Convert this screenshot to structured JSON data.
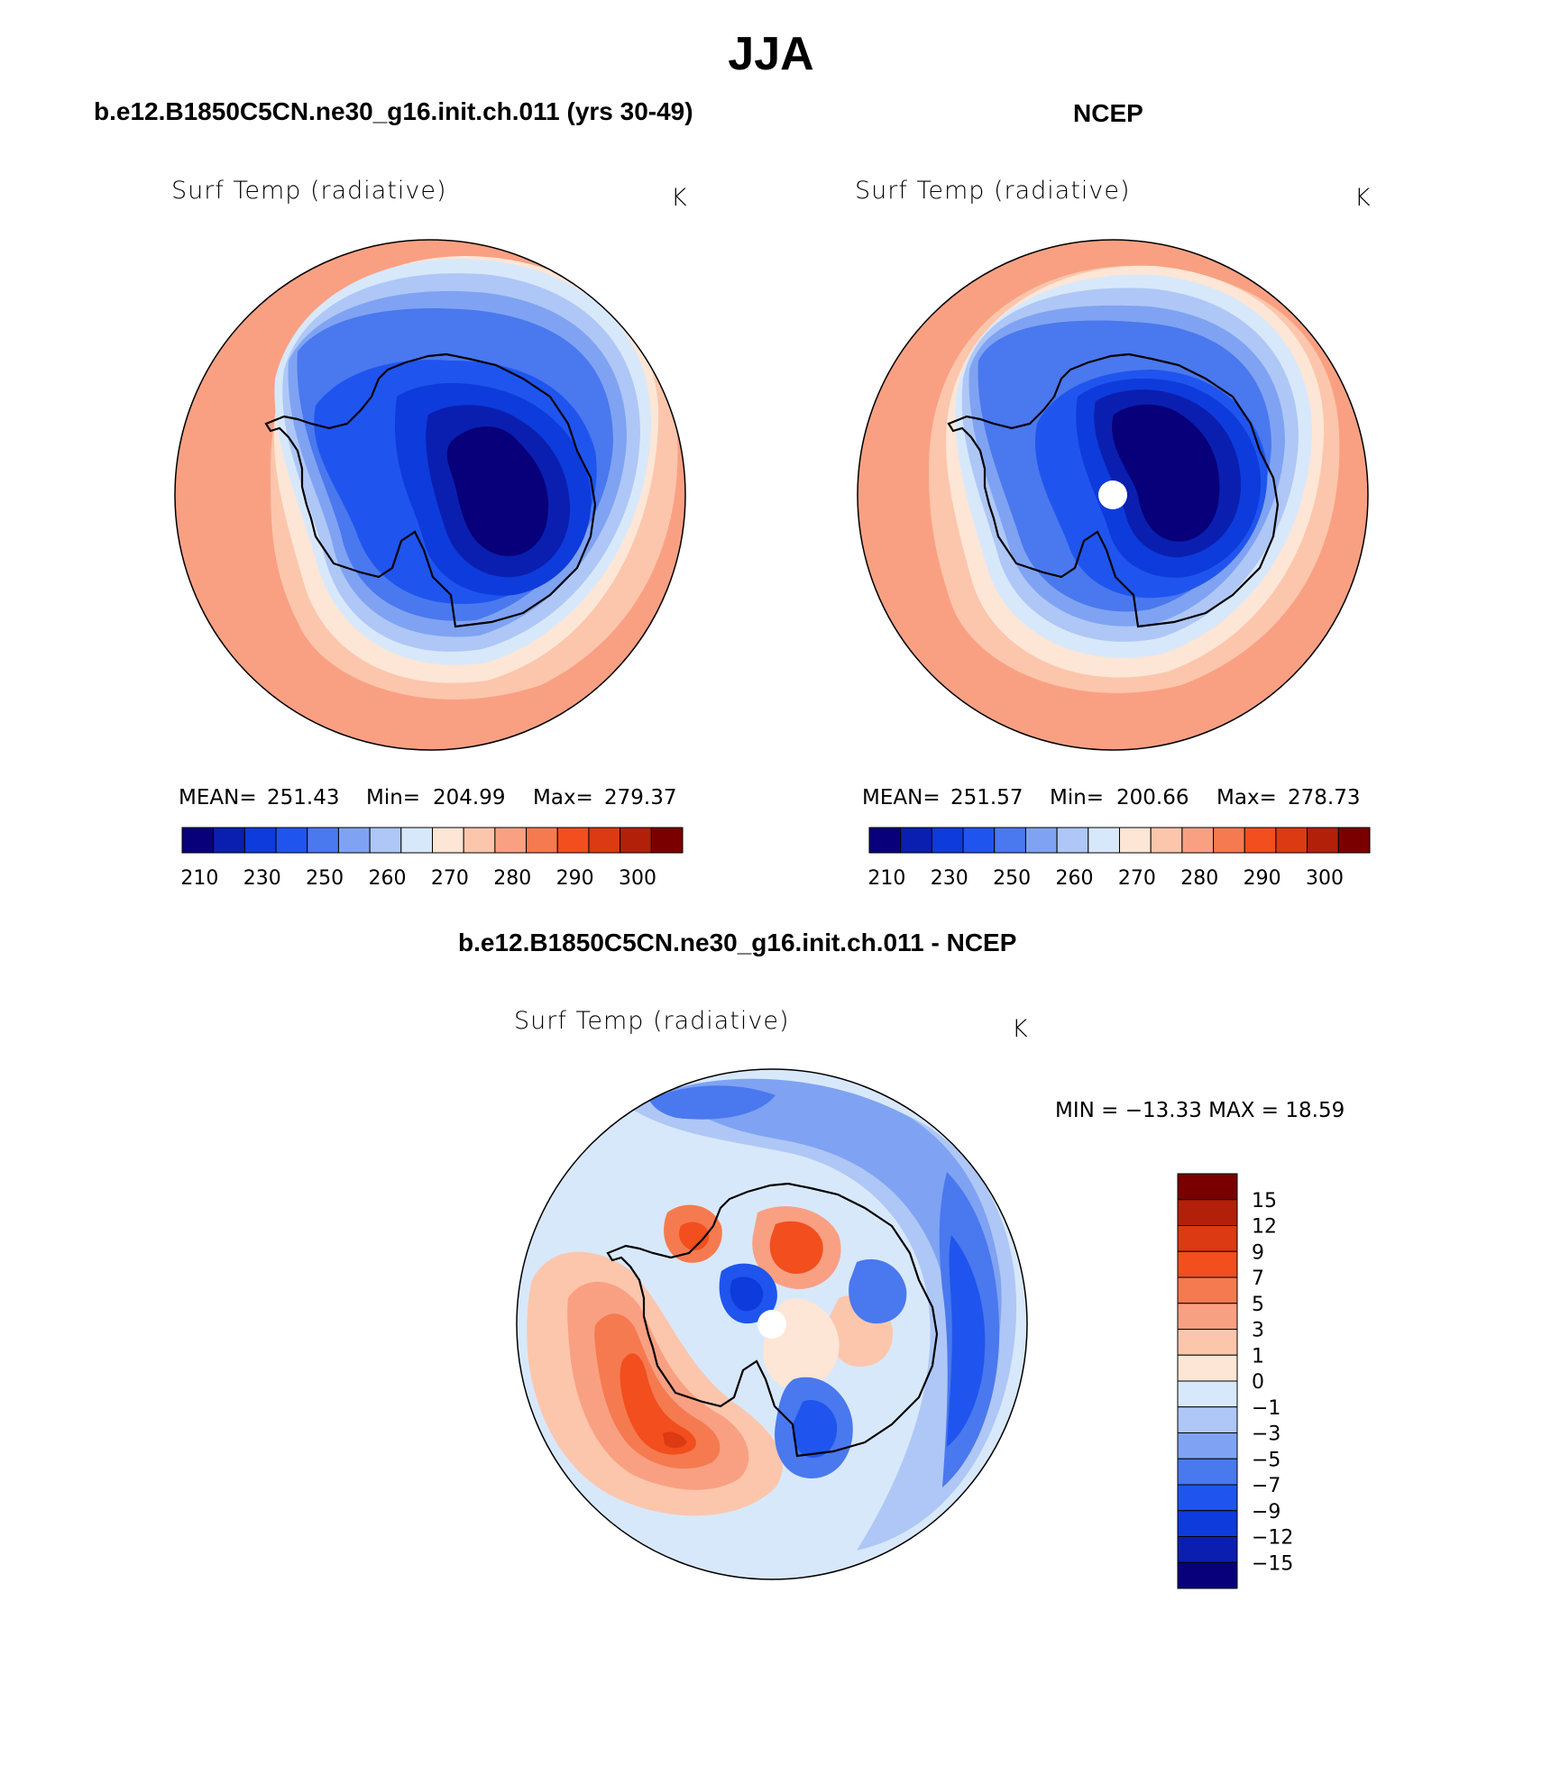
{
  "title": "JJA",
  "chart_data": [
    {
      "type": "heatmap",
      "panel_title": "b.e12.B1850C5CN.ne30_g16.init.ch.011 (yrs 30-49)",
      "field_label": "Surf Temp (radiative)",
      "units": "K",
      "stats": {
        "mean_label": "MEAN=",
        "mean": "251.43",
        "min_label": "Min=",
        "min": "204.99",
        "max_label": "Max=",
        "max": "279.37"
      },
      "colorbar_ticks": [
        "210",
        "230",
        "250",
        "260",
        "270",
        "280",
        "290",
        "300"
      ],
      "colors": [
        "#08007a",
        "#0a1fb0",
        "#0e3bdc",
        "#1f55ee",
        "#4a78ee",
        "#7fa3f2",
        "#aec7f6",
        "#d8e8fb",
        "#fde6d6",
        "#fcc6ac",
        "#f9a083",
        "#f67a4f",
        "#f24e1e",
        "#db3a12",
        "#b3200a",
        "#7a0000"
      ]
    },
    {
      "type": "heatmap",
      "panel_title": "NCEP",
      "field_label": "Surf Temp (radiative)",
      "units": "K",
      "stats": {
        "mean_label": "MEAN=",
        "mean": "251.57",
        "min_label": "Min=",
        "min": "200.66",
        "max_label": "Max=",
        "max": "278.73"
      },
      "colorbar_ticks": [
        "210",
        "230",
        "250",
        "260",
        "270",
        "280",
        "290",
        "300"
      ],
      "colors": [
        "#08007a",
        "#0a1fb0",
        "#0e3bdc",
        "#1f55ee",
        "#4a78ee",
        "#7fa3f2",
        "#aec7f6",
        "#d8e8fb",
        "#fde6d6",
        "#fcc6ac",
        "#f9a083",
        "#f67a4f",
        "#f24e1e",
        "#db3a12",
        "#b3200a",
        "#7a0000"
      ]
    },
    {
      "type": "heatmap",
      "panel_title": "b.e12.B1850C5CN.ne30_g16.init.ch.011 - NCEP",
      "field_label": "Surf Temp (radiative)",
      "units": "K",
      "stats": {
        "minmax_label": "MIN = −13.33 MAX =   18.59"
      },
      "colorbar_ticks": [
        "15",
        "12",
        "9",
        "7",
        "5",
        "3",
        "1",
        "0",
        "−1",
        "−3",
        "−5",
        "−7",
        "−9",
        "−12",
        "−15"
      ],
      "colors": [
        "#7a0000",
        "#b3200a",
        "#db3a12",
        "#f24e1e",
        "#f67a4f",
        "#f9a083",
        "#fcc6ac",
        "#fde6d6",
        "#d8e8fb",
        "#aec7f6",
        "#7fa3f2",
        "#4a78ee",
        "#1f55ee",
        "#0e3bdc",
        "#0a1fb0",
        "#08007a"
      ]
    }
  ]
}
